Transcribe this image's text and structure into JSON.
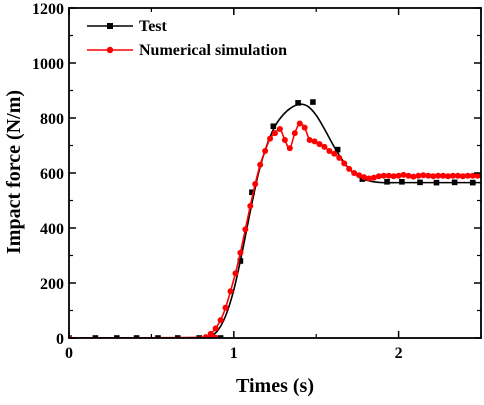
{
  "chart_data": {
    "type": "line",
    "title": "",
    "xlabel": "Times (s)",
    "ylabel": "Impact force (N/m)",
    "xlim": [
      0,
      2.5
    ],
    "ylim": [
      0,
      1200
    ],
    "x_ticks": [
      0,
      1,
      2
    ],
    "y_ticks": [
      0,
      200,
      400,
      600,
      800,
      1000,
      1200
    ],
    "x_tick_labels": [
      "0",
      "1",
      "2"
    ],
    "y_tick_labels": [
      "0",
      "200",
      "400",
      "600",
      "800",
      "1000",
      "1200"
    ],
    "grid": false,
    "legend_position": "top-left",
    "series": [
      {
        "name": "Test",
        "color": "#000000",
        "marker": "square",
        "markers": [
          [
            0.0,
            0
          ],
          [
            0.16,
            0
          ],
          [
            0.29,
            0
          ],
          [
            0.41,
            0
          ],
          [
            0.54,
            0
          ],
          [
            0.66,
            0
          ],
          [
            0.79,
            0
          ],
          [
            0.92,
            0
          ],
          [
            1.04,
            280
          ],
          [
            1.11,
            530
          ],
          [
            1.24,
            770
          ],
          [
            1.39,
            855
          ],
          [
            1.48,
            858
          ],
          [
            1.63,
            685
          ],
          [
            1.78,
            578
          ],
          [
            1.93,
            568
          ],
          [
            2.02,
            568
          ],
          [
            2.13,
            566
          ],
          [
            2.23,
            565
          ],
          [
            2.34,
            566
          ],
          [
            2.45,
            565
          ]
        ],
        "curve": [
          [
            0.0,
            0
          ],
          [
            0.8,
            0
          ],
          [
            0.85,
            5
          ],
          [
            0.9,
            25
          ],
          [
            0.95,
            80
          ],
          [
            1.0,
            175
          ],
          [
            1.05,
            310
          ],
          [
            1.1,
            460
          ],
          [
            1.15,
            600
          ],
          [
            1.2,
            700
          ],
          [
            1.25,
            770
          ],
          [
            1.3,
            812
          ],
          [
            1.35,
            838
          ],
          [
            1.4,
            850
          ],
          [
            1.45,
            842
          ],
          [
            1.5,
            810
          ],
          [
            1.55,
            760
          ],
          [
            1.6,
            705
          ],
          [
            1.65,
            655
          ],
          [
            1.7,
            615
          ],
          [
            1.75,
            590
          ],
          [
            1.8,
            575
          ],
          [
            1.85,
            568
          ],
          [
            1.9,
            565
          ],
          [
            2.0,
            565
          ],
          [
            2.2,
            565
          ],
          [
            2.5,
            565
          ]
        ]
      },
      {
        "name": "Numerical simulation",
        "color": "#ff0000",
        "marker": "circle",
        "markers": [
          [
            0.0,
            0
          ],
          [
            0.83,
            3
          ],
          [
            0.86,
            15
          ],
          [
            0.89,
            35
          ],
          [
            0.92,
            65
          ],
          [
            0.95,
            110
          ],
          [
            0.98,
            170
          ],
          [
            1.01,
            235
          ],
          [
            1.04,
            310
          ],
          [
            1.07,
            395
          ],
          [
            1.1,
            480
          ],
          [
            1.13,
            560
          ],
          [
            1.16,
            630
          ],
          [
            1.19,
            680
          ],
          [
            1.22,
            725
          ],
          [
            1.25,
            745
          ],
          [
            1.28,
            760
          ],
          [
            1.31,
            720
          ],
          [
            1.34,
            690
          ],
          [
            1.37,
            745
          ],
          [
            1.4,
            780
          ],
          [
            1.43,
            765
          ],
          [
            1.46,
            720
          ],
          [
            1.49,
            715
          ],
          [
            1.52,
            705
          ],
          [
            1.55,
            695
          ],
          [
            1.58,
            680
          ],
          [
            1.61,
            670
          ],
          [
            1.64,
            655
          ],
          [
            1.67,
            635
          ],
          [
            1.7,
            615
          ],
          [
            1.73,
            600
          ],
          [
            1.76,
            592
          ],
          [
            1.79,
            585
          ],
          [
            1.82,
            580
          ],
          [
            1.85,
            583
          ],
          [
            1.88,
            588
          ],
          [
            1.91,
            590
          ],
          [
            1.94,
            590
          ],
          [
            1.97,
            588
          ],
          [
            2.0,
            590
          ],
          [
            2.03,
            593
          ],
          [
            2.06,
            590
          ],
          [
            2.09,
            587
          ],
          [
            2.12,
            590
          ],
          [
            2.15,
            592
          ],
          [
            2.18,
            590
          ],
          [
            2.21,
            588
          ],
          [
            2.24,
            590
          ],
          [
            2.27,
            590
          ],
          [
            2.3,
            588
          ],
          [
            2.33,
            590
          ],
          [
            2.36,
            590
          ],
          [
            2.39,
            588
          ],
          [
            2.42,
            590
          ],
          [
            2.45,
            590
          ],
          [
            2.48,
            590
          ]
        ]
      }
    ]
  }
}
